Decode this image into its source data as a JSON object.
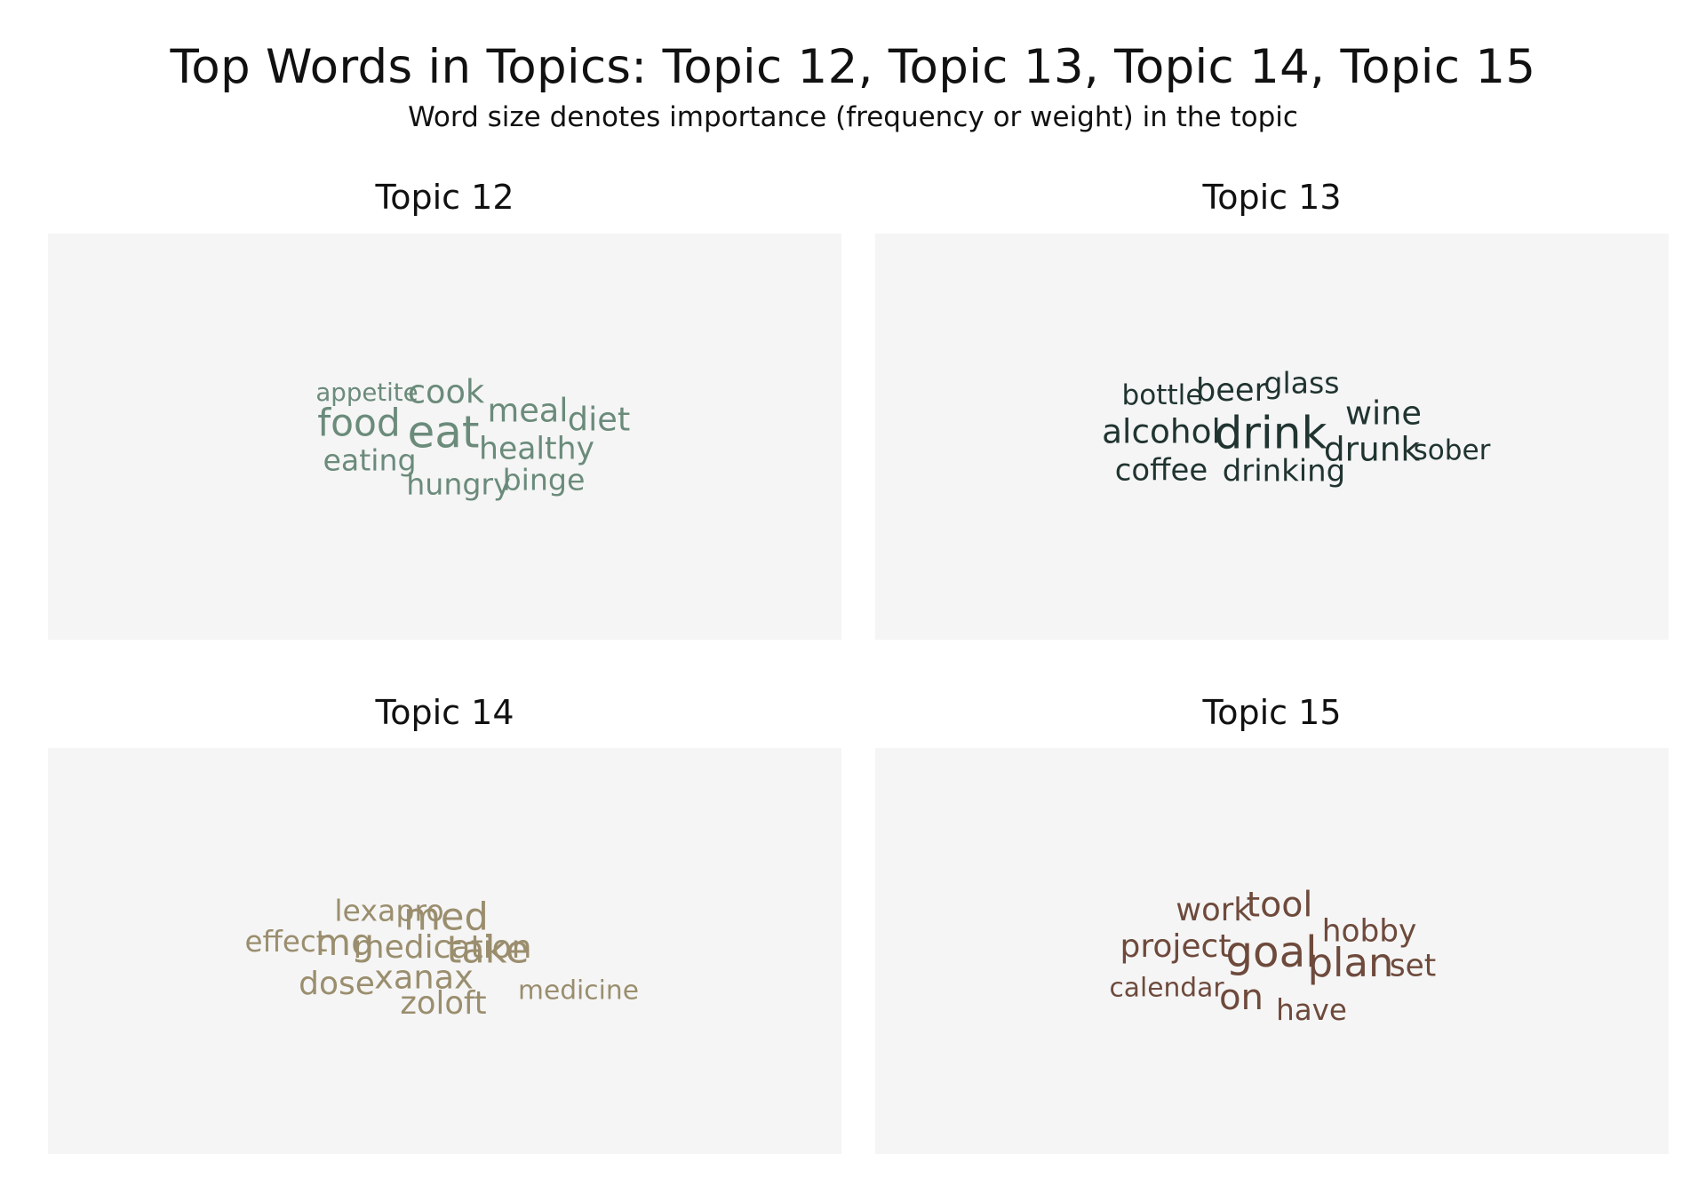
{
  "title": "Top Words in Topics: Topic 12, Topic 13, Topic 14, Topic 15",
  "subtitle": "Word size denotes importance (frequency or weight) in the topic",
  "chart_data": [
    {
      "type": "wordcloud",
      "title": "Topic 12",
      "color": "#6b8b7b",
      "words": [
        {
          "text": "eat",
          "weight": 1.0
        },
        {
          "text": "food",
          "weight": 0.78
        },
        {
          "text": "cook",
          "weight": 0.62
        },
        {
          "text": "meal",
          "weight": 0.62
        },
        {
          "text": "diet",
          "weight": 0.62
        },
        {
          "text": "healthy",
          "weight": 0.56
        },
        {
          "text": "eating",
          "weight": 0.52
        },
        {
          "text": "hungry",
          "weight": 0.52
        },
        {
          "text": "binge",
          "weight": 0.52
        },
        {
          "text": "appetite",
          "weight": 0.36
        }
      ]
    },
    {
      "type": "wordcloud",
      "title": "Topic 13",
      "color": "#203430",
      "words": [
        {
          "text": "drink",
          "weight": 1.0
        },
        {
          "text": "alcohol",
          "weight": 0.64
        },
        {
          "text": "drunk",
          "weight": 0.64
        },
        {
          "text": "wine",
          "weight": 0.62
        },
        {
          "text": "beer",
          "weight": 0.58
        },
        {
          "text": "drinking",
          "weight": 0.54
        },
        {
          "text": "coffee",
          "weight": 0.54
        },
        {
          "text": "glass",
          "weight": 0.52
        },
        {
          "text": "bottle",
          "weight": 0.46
        },
        {
          "text": "sober",
          "weight": 0.46
        }
      ]
    },
    {
      "type": "wordcloud",
      "title": "Topic 14",
      "color": "#9a8e6e",
      "words": [
        {
          "text": "med",
          "weight": 0.8
        },
        {
          "text": "take",
          "weight": 0.8
        },
        {
          "text": "mg",
          "weight": 0.75
        },
        {
          "text": "medication",
          "weight": 0.6
        },
        {
          "text": "xanax",
          "weight": 0.62
        },
        {
          "text": "dose",
          "weight": 0.6
        },
        {
          "text": "zoloft",
          "weight": 0.58
        },
        {
          "text": "lexapro",
          "weight": 0.52
        },
        {
          "text": "effect",
          "weight": 0.5
        },
        {
          "text": "medicine",
          "weight": 0.42
        }
      ]
    },
    {
      "type": "wordcloud",
      "title": "Topic 15",
      "color": "#6e4a3c",
      "words": [
        {
          "text": "goal",
          "weight": 0.95
        },
        {
          "text": "plan",
          "weight": 0.85
        },
        {
          "text": "tool",
          "weight": 0.7
        },
        {
          "text": "on",
          "weight": 0.72
        },
        {
          "text": "project",
          "weight": 0.6
        },
        {
          "text": "work",
          "weight": 0.58
        },
        {
          "text": "hobby",
          "weight": 0.55
        },
        {
          "text": "set",
          "weight": 0.55
        },
        {
          "text": "have",
          "weight": 0.5
        },
        {
          "text": "calendar",
          "weight": 0.42
        }
      ]
    }
  ]
}
